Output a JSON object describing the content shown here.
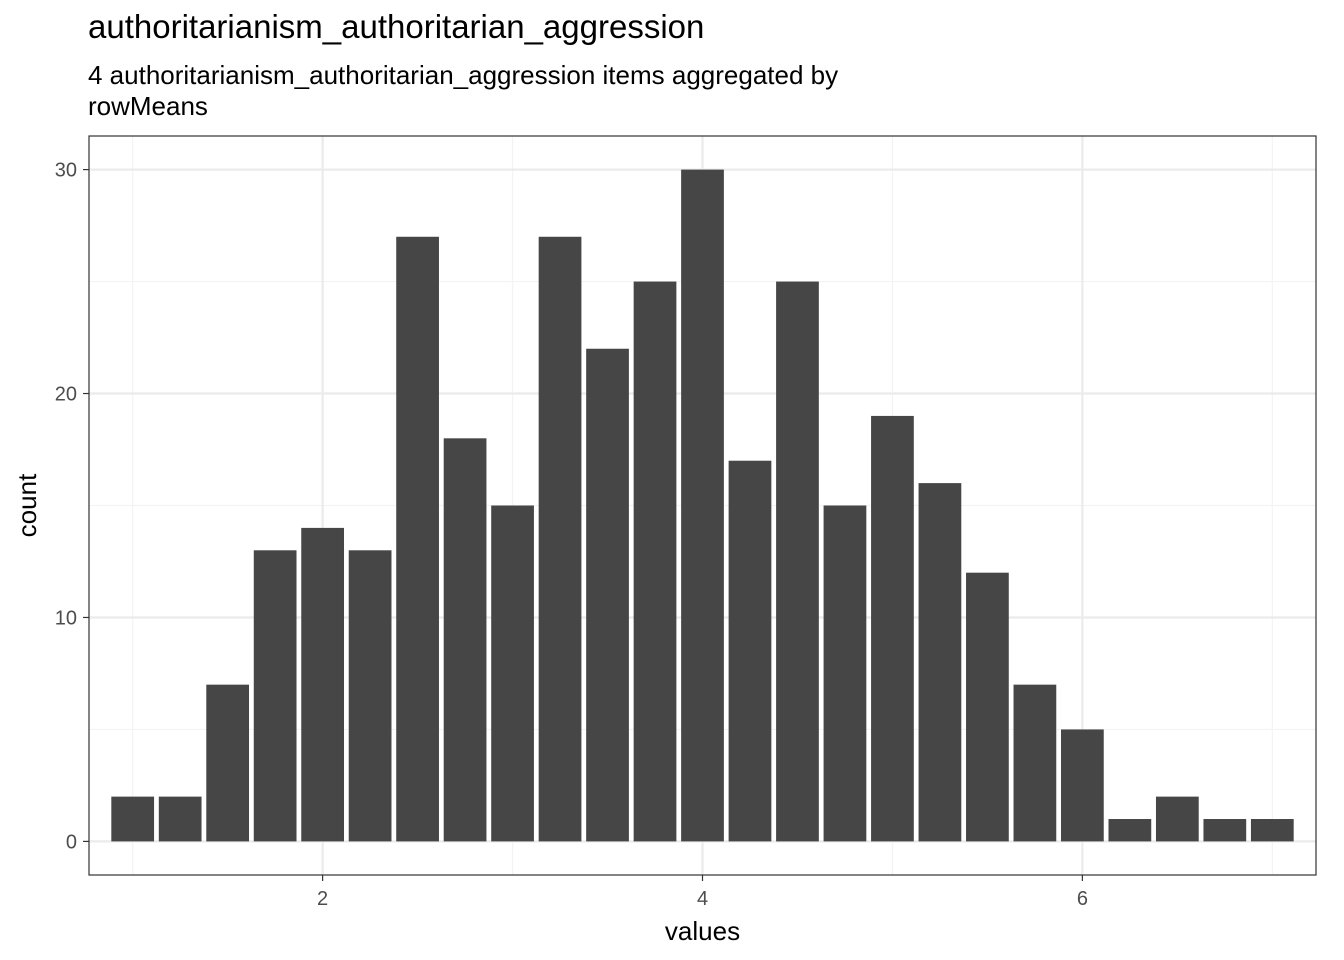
{
  "chart_data": {
    "type": "bar",
    "title": "authoritarianism_authoritarian_aggression",
    "subtitle": [
      "4 authoritarianism_authoritarian_aggression items aggregated by",
      "rowMeans"
    ],
    "xlabel": "values",
    "ylabel": "count",
    "x": [
      1.0,
      1.25,
      1.5,
      1.75,
      2.0,
      2.25,
      2.5,
      2.75,
      3.0,
      3.25,
      3.5,
      3.75,
      4.0,
      4.25,
      4.5,
      4.75,
      5.0,
      5.25,
      5.5,
      5.75,
      6.0,
      6.25,
      6.5,
      6.75,
      7.0
    ],
    "values": [
      2,
      2,
      7,
      13,
      14,
      13,
      27,
      18,
      15,
      27,
      22,
      25,
      30,
      17,
      25,
      15,
      19,
      16,
      12,
      7,
      5,
      1,
      2,
      1,
      1
    ],
    "bar_width": 0.225,
    "xlim": [
      0.77,
      7.23
    ],
    "ylim": [
      -1.5,
      31.5
    ],
    "xticks": [
      2,
      4,
      6
    ],
    "xtick_labels": [
      "2",
      "4",
      "6"
    ],
    "xminor": [
      1,
      3,
      5,
      7
    ],
    "yticks": [
      0,
      10,
      20,
      30
    ],
    "ytick_labels": [
      "0",
      "10",
      "20",
      "30"
    ],
    "yminor": [
      5,
      15,
      25
    ],
    "grid": true,
    "bar_color": "#464646",
    "panel_border_color": "#333333",
    "grid_major_color": "#ebebeb",
    "grid_minor_color": "#f3f3f3"
  }
}
